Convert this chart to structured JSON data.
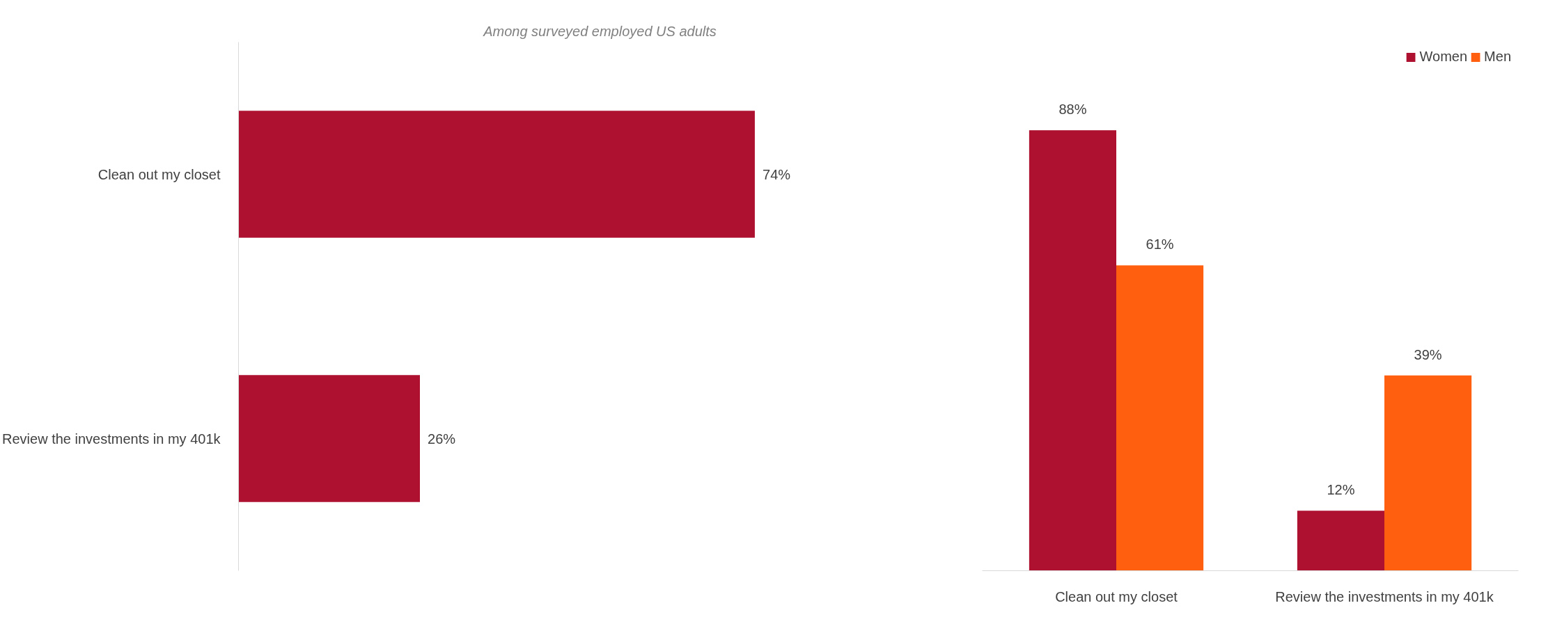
{
  "chart_data": [
    {
      "type": "bar",
      "orientation": "horizontal",
      "subtitle": "Among surveyed employed US adults",
      "categories": [
        "Clean out my closet",
        "Review the investments in my 401k"
      ],
      "values": [
        74,
        26
      ],
      "value_labels": [
        "74%",
        "26%"
      ],
      "color": "#ae1130",
      "grid": false,
      "legend": false
    },
    {
      "type": "bar",
      "categories": [
        "Clean out my closet",
        "Review the investments in my 401k"
      ],
      "series": [
        {
          "name": "Women",
          "color": "#ae1130",
          "values": [
            88,
            12
          ],
          "value_labels": [
            "88%",
            "12%"
          ]
        },
        {
          "name": "Men",
          "color": "#ff5f0f",
          "values": [
            61,
            39
          ],
          "value_labels": [
            "61%",
            "39%"
          ]
        }
      ],
      "grid": false,
      "legend": "top right"
    }
  ]
}
